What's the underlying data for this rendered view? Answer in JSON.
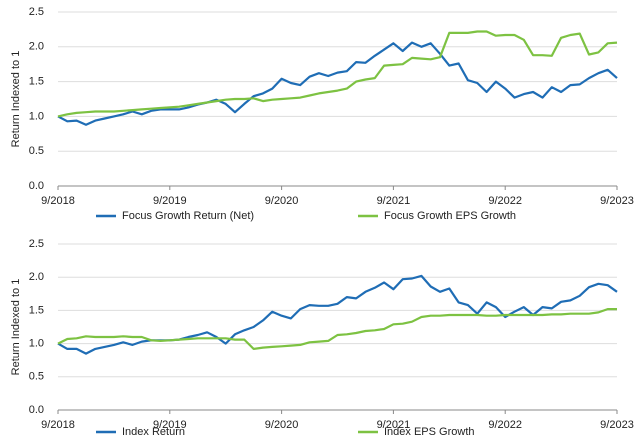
{
  "chart_data": [
    {
      "type": "line",
      "y_label": "Return Indexed to 1",
      "x": [
        "9/2018",
        "10/2018",
        "11/2018",
        "12/2018",
        "1/2019",
        "2/2019",
        "3/2019",
        "4/2019",
        "5/2019",
        "6/2019",
        "7/2019",
        "8/2019",
        "9/2019",
        "10/2019",
        "11/2019",
        "12/2019",
        "1/2020",
        "2/2020",
        "3/2020",
        "4/2020",
        "5/2020",
        "6/2020",
        "7/2020",
        "8/2020",
        "9/2020",
        "10/2020",
        "11/2020",
        "12/2020",
        "1/2021",
        "2/2021",
        "3/2021",
        "4/2021",
        "5/2021",
        "6/2021",
        "7/2021",
        "8/2021",
        "9/2021",
        "10/2021",
        "11/2021",
        "12/2021",
        "1/2022",
        "2/2022",
        "3/2022",
        "4/2022",
        "5/2022",
        "6/2022",
        "7/2022",
        "8/2022",
        "9/2022",
        "10/2022",
        "11/2022",
        "12/2022",
        "1/2023",
        "2/2023",
        "3/2023",
        "4/2023",
        "5/2023",
        "6/2023",
        "7/2023",
        "8/2023",
        "9/2023"
      ],
      "xticks": [
        "9/2018",
        "9/2019",
        "9/2020",
        "9/2021",
        "9/2022",
        "9/2023"
      ],
      "ylim": [
        0,
        2.5
      ],
      "yticks": [
        {
          "value": 0,
          "label": "0.0"
        },
        {
          "value": 0.5,
          "label": "0.5"
        },
        {
          "value": 1,
          "label": "1.0"
        },
        {
          "value": 1.5,
          "label": "1.5"
        },
        {
          "value": 2,
          "label": "2.0"
        },
        {
          "value": 2.5,
          "label": "2.5"
        }
      ],
      "grid": true,
      "series": [
        {
          "name": "Focus Growth Return (Net)",
          "color": "#1f6db5",
          "values": [
            1.0,
            0.93,
            0.94,
            0.88,
            0.94,
            0.97,
            1.0,
            1.03,
            1.07,
            1.03,
            1.08,
            1.1,
            1.1,
            1.1,
            1.13,
            1.17,
            1.2,
            1.24,
            1.18,
            1.06,
            1.18,
            1.29,
            1.33,
            1.4,
            1.54,
            1.48,
            1.45,
            1.57,
            1.62,
            1.58,
            1.63,
            1.65,
            1.78,
            1.77,
            1.87,
            1.96,
            2.05,
            1.94,
            2.06,
            2.0,
            2.05,
            1.9,
            1.73,
            1.76,
            1.52,
            1.48,
            1.35,
            1.5,
            1.4,
            1.27,
            1.32,
            1.35,
            1.27,
            1.42,
            1.35,
            1.45,
            1.46,
            1.55,
            1.62,
            1.67,
            1.55
          ]
        },
        {
          "name": "Focus Growth EPS Growth",
          "color": "#7dc242",
          "values": [
            1.0,
            1.03,
            1.05,
            1.06,
            1.07,
            1.07,
            1.07,
            1.08,
            1.09,
            1.1,
            1.11,
            1.12,
            1.13,
            1.14,
            1.16,
            1.18,
            1.2,
            1.22,
            1.24,
            1.25,
            1.25,
            1.26,
            1.22,
            1.24,
            1.25,
            1.26,
            1.27,
            1.3,
            1.33,
            1.35,
            1.37,
            1.4,
            1.5,
            1.53,
            1.55,
            1.73,
            1.74,
            1.75,
            1.84,
            1.83,
            1.82,
            1.85,
            2.2,
            2.2,
            2.2,
            2.22,
            2.22,
            2.16,
            2.17,
            2.17,
            2.1,
            1.88,
            1.88,
            1.87,
            2.13,
            2.17,
            2.19,
            1.89,
            1.92,
            2.05,
            2.06
          ]
        }
      ]
    },
    {
      "type": "line",
      "y_label": "Return Indexed to 1",
      "x": [
        "9/2018",
        "10/2018",
        "11/2018",
        "12/2018",
        "1/2019",
        "2/2019",
        "3/2019",
        "4/2019",
        "5/2019",
        "6/2019",
        "7/2019",
        "8/2019",
        "9/2019",
        "10/2019",
        "11/2019",
        "12/2019",
        "1/2020",
        "2/2020",
        "3/2020",
        "4/2020",
        "5/2020",
        "6/2020",
        "7/2020",
        "8/2020",
        "9/2020",
        "10/2020",
        "11/2020",
        "12/2020",
        "1/2021",
        "2/2021",
        "3/2021",
        "4/2021",
        "5/2021",
        "6/2021",
        "7/2021",
        "8/2021",
        "9/2021",
        "10/2021",
        "11/2021",
        "12/2021",
        "1/2022",
        "2/2022",
        "3/2022",
        "4/2022",
        "5/2022",
        "6/2022",
        "7/2022",
        "8/2022",
        "9/2022",
        "10/2022",
        "11/2022",
        "12/2022",
        "1/2023",
        "2/2023",
        "3/2023",
        "4/2023",
        "5/2023",
        "6/2023",
        "7/2023",
        "8/2023",
        "9/2023"
      ],
      "xticks": [
        "9/2018",
        "9/2019",
        "9/2020",
        "9/2021",
        "9/2022",
        "9/2023"
      ],
      "ylim": [
        0,
        2.5
      ],
      "yticks": [
        {
          "value": 0,
          "label": "0.0"
        },
        {
          "value": 0.5,
          "label": "0.5"
        },
        {
          "value": 1,
          "label": "1.0"
        },
        {
          "value": 1.5,
          "label": "1.5"
        },
        {
          "value": 2,
          "label": "2.0"
        },
        {
          "value": 2.5,
          "label": "2.5"
        }
      ],
      "grid": true,
      "series": [
        {
          "name": "Index Return",
          "color": "#1f6db5",
          "values": [
            1.0,
            0.92,
            0.92,
            0.85,
            0.92,
            0.95,
            0.98,
            1.02,
            0.98,
            1.03,
            1.05,
            1.05,
            1.05,
            1.06,
            1.1,
            1.13,
            1.17,
            1.1,
            1.0,
            1.14,
            1.2,
            1.25,
            1.35,
            1.48,
            1.42,
            1.38,
            1.52,
            1.58,
            1.57,
            1.57,
            1.6,
            1.7,
            1.68,
            1.78,
            1.84,
            1.92,
            1.82,
            1.97,
            1.98,
            2.02,
            1.86,
            1.78,
            1.83,
            1.62,
            1.58,
            1.45,
            1.62,
            1.55,
            1.4,
            1.48,
            1.55,
            1.43,
            1.55,
            1.53,
            1.63,
            1.65,
            1.72,
            1.85,
            1.9,
            1.88,
            1.78
          ]
        },
        {
          "name": "Index EPS Growth",
          "color": "#7dc242",
          "values": [
            1.0,
            1.07,
            1.08,
            1.11,
            1.1,
            1.1,
            1.1,
            1.11,
            1.1,
            1.1,
            1.05,
            1.04,
            1.05,
            1.06,
            1.07,
            1.08,
            1.08,
            1.08,
            1.08,
            1.06,
            1.06,
            0.92,
            0.94,
            0.95,
            0.96,
            0.97,
            0.98,
            1.02,
            1.03,
            1.04,
            1.13,
            1.14,
            1.16,
            1.19,
            1.2,
            1.22,
            1.29,
            1.3,
            1.33,
            1.4,
            1.42,
            1.42,
            1.43,
            1.43,
            1.43,
            1.43,
            1.42,
            1.42,
            1.43,
            1.43,
            1.43,
            1.43,
            1.43,
            1.44,
            1.44,
            1.45,
            1.45,
            1.45,
            1.47,
            1.52,
            1.52
          ]
        }
      ]
    }
  ]
}
